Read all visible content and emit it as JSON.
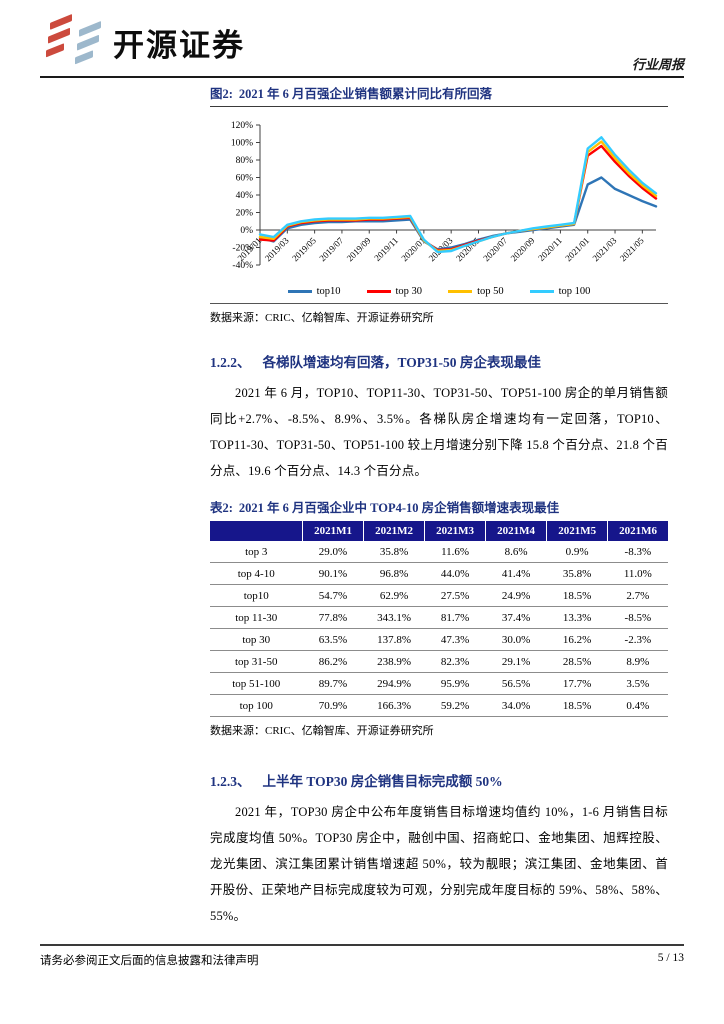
{
  "header": {
    "logo_text": "开源证券",
    "doc_type": "行业周报"
  },
  "colors": {
    "heading_navy": "#1f3380",
    "table_header_bg": "#16168b",
    "logo_red": "#cc4a3d",
    "logo_blue_gray": "#9db8cc",
    "series_top10": "#2e75b6",
    "series_top30": "#ff0000",
    "series_top50": "#ffc000",
    "series_top100": "#33ccff"
  },
  "figure": {
    "label": "图2:",
    "title": "2021 年 6 月百强企业销售额累计同比有所回落",
    "source_label": "数据来源：",
    "source_text": "CRIC、亿翰智库、开源证券研究所"
  },
  "chart_data": {
    "type": "line",
    "title": "2021 年 6 月百强企业销售额累计同比有所回落",
    "xlabel": "",
    "ylabel": "",
    "ylim": [
      -40,
      120
    ],
    "ytick_step": 20,
    "ytick_suffix": "%",
    "x_tick_every": 2,
    "grid": false,
    "legend_position": "bottom",
    "x": [
      "2019/01",
      "2019/02",
      "2019/03",
      "2019/04",
      "2019/05",
      "2019/06",
      "2019/07",
      "2019/08",
      "2019/09",
      "2019/10",
      "2019/11",
      "2019/12",
      "2020/01",
      "2020/02",
      "2020/03",
      "2020/04",
      "2020/05",
      "2020/06",
      "2020/07",
      "2020/08",
      "2020/09",
      "2020/10",
      "2020/11",
      "2020/12",
      "2021/01",
      "2021/02",
      "2021/03",
      "2021/04",
      "2021/05",
      "2021/06"
    ],
    "series": [
      {
        "name": "top10",
        "color": "#2e75b6",
        "values": [
          -9,
          -13,
          2,
          6,
          8,
          9,
          9,
          10,
          10,
          10,
          11,
          12,
          -13,
          -22,
          -20,
          -16,
          -11,
          -7,
          -4,
          -2,
          0,
          2,
          4,
          6,
          52,
          60,
          47,
          40,
          33,
          27
        ]
      },
      {
        "name": "top 30",
        "color": "#ff0000",
        "values": [
          -11,
          -12,
          4,
          8,
          10,
          11,
          11,
          11,
          12,
          12,
          13,
          14,
          -12,
          -23,
          -22,
          -17,
          -12,
          -8,
          -4,
          -1,
          1,
          3,
          5,
          7,
          85,
          96,
          78,
          62,
          48,
          36
        ]
      },
      {
        "name": "top 50",
        "color": "#ffc000",
        "values": [
          -8,
          -10,
          5,
          9,
          11,
          12,
          12,
          12,
          13,
          13,
          14,
          15,
          -12,
          -24,
          -23,
          -18,
          -13,
          -8,
          -4,
          -1,
          1,
          3,
          5,
          7,
          89,
          101,
          82,
          65,
          51,
          39
        ]
      },
      {
        "name": "top 100",
        "color": "#33ccff",
        "values": [
          -5,
          -8,
          6,
          10,
          12,
          13,
          13,
          13,
          14,
          14,
          15,
          16,
          -11,
          -25,
          -24,
          -18,
          -13,
          -8,
          -4,
          -1,
          2,
          4,
          6,
          8,
          93,
          106,
          86,
          69,
          54,
          42
        ]
      }
    ]
  },
  "sections": {
    "s122": {
      "number": "1.2.2、",
      "title": "各梯队增速均有回落，TOP31-50 房企表现最佳",
      "paragraph": "2021 年 6 月，TOP10、TOP11-30、TOP31-50、TOP51-100 房企的单月销售额同比+2.7%、-8.5%、8.9%、3.5%。各梯队房企增速均有一定回落，TOP10、 TOP11-30、TOP31-50、TOP51-100 较上月增速分别下降 15.8 个百分点、21.8 个百分点、19.6 个百分点、14.3 个百分点。"
    },
    "s123": {
      "number": "1.2.3、",
      "title": "上半年 TOP30 房企销售目标完成额 50%",
      "paragraph": "2021 年，TOP30 房企中公布年度销售目标增速均值约 10%，1-6 月销售目标完成度均值 50%。TOP30 房企中，融创中国、招商蛇口、金地集团、旭辉控股、龙光集团、滨江集团累计销售增速超 50%，较为靓眼；滨江集团、金地集团、首开股份、正荣地产目标完成度较为可观，分别完成年度目标的 59%、58%、58%、55%。"
    }
  },
  "table": {
    "label": "表2:",
    "title": "2021 年 6 月百强企业中 TOP4-10 房企销售额增速表现最佳",
    "columns": [
      "",
      "2021M1",
      "2021M2",
      "2021M3",
      "2021M4",
      "2021M5",
      "2021M6"
    ],
    "rows": [
      [
        "top 3",
        "29.0%",
        "35.8%",
        "11.6%",
        "8.6%",
        "0.9%",
        "-8.3%"
      ],
      [
        "top 4-10",
        "90.1%",
        "96.8%",
        "44.0%",
        "41.4%",
        "35.8%",
        "11.0%"
      ],
      [
        "top10",
        "54.7%",
        "62.9%",
        "27.5%",
        "24.9%",
        "18.5%",
        "2.7%"
      ],
      [
        "top 11-30",
        "77.8%",
        "343.1%",
        "81.7%",
        "37.4%",
        "13.3%",
        "-8.5%"
      ],
      [
        "top 30",
        "63.5%",
        "137.8%",
        "47.3%",
        "30.0%",
        "16.2%",
        "-2.3%"
      ],
      [
        "top 31-50",
        "86.2%",
        "238.9%",
        "82.3%",
        "29.1%",
        "28.5%",
        "8.9%"
      ],
      [
        "top 51-100",
        "89.7%",
        "294.9%",
        "95.9%",
        "56.5%",
        "17.7%",
        "3.5%"
      ],
      [
        "top 100",
        "70.9%",
        "166.3%",
        "59.2%",
        "34.0%",
        "18.5%",
        "0.4%"
      ]
    ],
    "source_label": "数据来源：",
    "source_text": "CRIC、亿翰智库、开源证券研究所"
  },
  "footer": {
    "disclaimer": "请务必参阅正文后面的信息披露和法律声明",
    "page_number": "5 / 13"
  }
}
